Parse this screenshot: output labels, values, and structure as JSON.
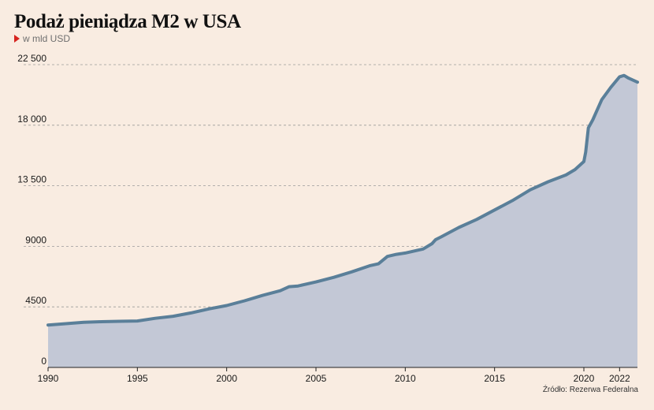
{
  "title": "Podaż pieniądza M2 w USA",
  "subtitle": "w mld USD",
  "source": "Źródło: Rezerwa Federalna",
  "colors": {
    "background": "#f9ece1",
    "area_fill": "#c3c8d6",
    "line": "#5a7f99",
    "gridline": "#9a9a9a",
    "subtitle_marker": "#d6241f"
  },
  "chart_data": {
    "type": "area",
    "title": "Podaż pieniądza M2 w USA",
    "ylabel": "w mld USD",
    "xlabel": "",
    "xlim": [
      1990,
      2023
    ],
    "ylim": [
      0,
      22500
    ],
    "grid": true,
    "x_ticks": [
      1990,
      1995,
      2000,
      2005,
      2010,
      2015,
      2020,
      2022
    ],
    "y_ticks": [
      {
        "value": 0,
        "label": "0"
      },
      {
        "value": 4500,
        "label": "4500"
      },
      {
        "value": 9000,
        "label": "9000"
      },
      {
        "value": 13500,
        "label": "13 500"
      },
      {
        "value": 18000,
        "label": "18 000"
      },
      {
        "value": 22500,
        "label": "22 500"
      }
    ],
    "series": [
      {
        "points": [
          [
            1990.0,
            3150
          ],
          [
            1991.0,
            3250
          ],
          [
            1992.0,
            3350
          ],
          [
            1993.0,
            3400
          ],
          [
            1994.0,
            3430
          ],
          [
            1995.0,
            3450
          ],
          [
            1996.0,
            3650
          ],
          [
            1997.0,
            3800
          ],
          [
            1998.0,
            4050
          ],
          [
            1999.0,
            4350
          ],
          [
            2000.0,
            4600
          ],
          [
            2001.0,
            4950
          ],
          [
            2002.0,
            5350
          ],
          [
            2003.0,
            5700
          ],
          [
            2003.5,
            6000
          ],
          [
            2004.0,
            6050
          ],
          [
            2005.0,
            6350
          ],
          [
            2006.0,
            6700
          ],
          [
            2007.0,
            7100
          ],
          [
            2008.0,
            7550
          ],
          [
            2008.5,
            7700
          ],
          [
            2009.0,
            8250
          ],
          [
            2009.5,
            8400
          ],
          [
            2010.0,
            8500
          ],
          [
            2011.0,
            8800
          ],
          [
            2011.5,
            9200
          ],
          [
            2011.7,
            9500
          ],
          [
            2012.0,
            9700
          ],
          [
            2013.0,
            10400
          ],
          [
            2014.0,
            11000
          ],
          [
            2015.0,
            11700
          ],
          [
            2016.0,
            12400
          ],
          [
            2017.0,
            13200
          ],
          [
            2018.0,
            13800
          ],
          [
            2019.0,
            14300
          ],
          [
            2019.5,
            14700
          ],
          [
            2020.0,
            15300
          ],
          [
            2020.1,
            16000
          ],
          [
            2020.25,
            17800
          ],
          [
            2020.5,
            18400
          ],
          [
            2021.0,
            19900
          ],
          [
            2021.5,
            20800
          ],
          [
            2022.0,
            21600
          ],
          [
            2022.25,
            21700
          ],
          [
            2022.5,
            21500
          ],
          [
            2023.0,
            21200
          ]
        ]
      }
    ]
  }
}
